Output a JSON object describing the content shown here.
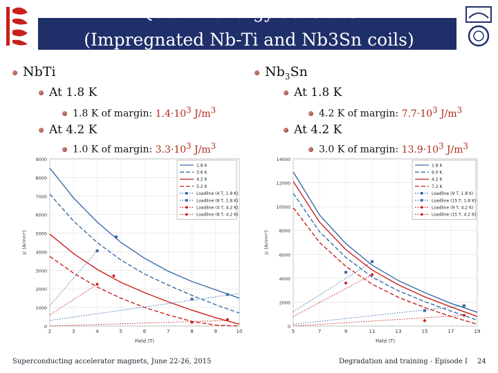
{
  "title": {
    "line1": "Quench energy densities",
    "line2": "(Impregnated Nb-Ti and Nb3Sn coils)"
  },
  "left": {
    "heading": "NbTi",
    "items": [
      {
        "label": "At 1.8 K",
        "sub": {
          "prefix": "1.8 K of margin: ",
          "value": "1.4·10",
          "exp": "3",
          "unit": " J/m",
          "unit_exp": "3"
        }
      },
      {
        "label": "At 4.2 K",
        "sub": {
          "prefix": "1.0 K of margin: ",
          "value": "3.3·10",
          "exp": "3",
          "unit": " J/m",
          "unit_exp": "3"
        }
      }
    ]
  },
  "right": {
    "heading_main": "Nb",
    "heading_sub": "3",
    "heading_tail": "Sn",
    "items": [
      {
        "label": "At 1.8 K",
        "sub": {
          "prefix": "4.2 K of margin: ",
          "value": "7.7·10",
          "exp": "3",
          "unit": " J/m",
          "unit_exp": "3"
        }
      },
      {
        "label": "At 4.2 K",
        "sub": {
          "prefix": "3.0 K of margin: ",
          "value": "13.9·10",
          "exp": "3",
          "unit": " J/m",
          "unit_exp": "3"
        }
      }
    ]
  },
  "footer": {
    "left": "Superconducting accelerator magnets, June 22-26, 2015",
    "right": "Degradation and training - Episode I",
    "page": "24"
  },
  "colors": {
    "title_band": "#1f2f6a",
    "blue": "#3a6aa8",
    "red": "#c8201c",
    "accent": "#b0281a"
  },
  "chart_data": [
    {
      "type": "line",
      "xlabel": "Field (T)",
      "ylabel": "Jc [A/mm²]",
      "xlim": [
        2,
        10
      ],
      "ylim": [
        0,
        9000
      ],
      "xticks": [
        2,
        3,
        4,
        5,
        6,
        7,
        8,
        9,
        10
      ],
      "yticks": [
        0,
        1000,
        2000,
        3000,
        4000,
        5000,
        6000,
        7000,
        8000,
        9000
      ],
      "legend_position": "top-right",
      "series": [
        {
          "name": "1.8 K",
          "color": "#3a6aa8",
          "dash": "solid",
          "x": [
            2,
            3,
            4,
            5,
            6,
            7,
            8,
            9,
            10
          ],
          "y": [
            8500,
            6900,
            5600,
            4500,
            3650,
            2950,
            2400,
            1950,
            1500
          ]
        },
        {
          "name": "3.6 K",
          "color": "#3a6aa8",
          "dash": "dashed",
          "x": [
            2,
            3,
            4,
            5,
            6,
            7,
            8,
            9,
            10
          ],
          "y": [
            7100,
            5650,
            4500,
            3550,
            2800,
            2200,
            1650,
            1150,
            700
          ]
        },
        {
          "name": "4.2 K",
          "color": "#c8201c",
          "dash": "solid",
          "x": [
            2,
            3,
            4,
            5,
            6,
            7,
            8,
            9,
            10
          ],
          "y": [
            4950,
            3900,
            3050,
            2350,
            1800,
            1300,
            850,
            450,
            100
          ]
        },
        {
          "name": "5.2 K",
          "color": "#c8201c",
          "dash": "dashed",
          "x": [
            2,
            3,
            4,
            5,
            6,
            7,
            8,
            9,
            10
          ],
          "y": [
            3750,
            2850,
            2100,
            1500,
            1000,
            600,
            250,
            50,
            0
          ]
        },
        {
          "name": "Loadline (4 T, 1.8 K)",
          "color": "#3a6aa8",
          "dash": "dotted",
          "marker": true,
          "x": [
            2,
            4
          ],
          "y": [
            1100,
            4050
          ]
        },
        {
          "name": "Loadline (8 T, 1.8 K)",
          "color": "#3a6aa8",
          "dash": "dotted",
          "marker": true,
          "x": [
            2,
            10
          ],
          "y": [
            300,
            1750
          ]
        },
        {
          "name": "Loadline (4 T, 4.2 K)",
          "color": "#c8201c",
          "dash": "dotted",
          "marker": true,
          "x": [
            2,
            4
          ],
          "y": [
            600,
            2250
          ]
        },
        {
          "name": "Loadline (8 T, 4.2 K)",
          "color": "#c8201c",
          "dash": "dotted",
          "marker": true,
          "x": [
            2,
            9.5
          ],
          "y": [
            0,
            300
          ]
        }
      ],
      "points": [
        {
          "x": 4,
          "y": 4050,
          "color": "#3a6aa8"
        },
        {
          "x": 4.8,
          "y": 4800,
          "color": "#3a6aa8"
        },
        {
          "x": 4,
          "y": 2250,
          "color": "#c8201c"
        },
        {
          "x": 4.7,
          "y": 2700,
          "color": "#c8201c"
        },
        {
          "x": 8,
          "y": 1450,
          "color": "#3a6aa8"
        },
        {
          "x": 9.5,
          "y": 1700,
          "color": "#3a6aa8"
        },
        {
          "x": 8,
          "y": 200,
          "color": "#c8201c"
        },
        {
          "x": 9.5,
          "y": 350,
          "color": "#c8201c"
        }
      ]
    },
    {
      "type": "line",
      "xlabel": "Field (T)",
      "ylabel": "Jc [A/mm²]",
      "xlim": [
        5,
        19
      ],
      "ylim": [
        0,
        14000
      ],
      "xticks": [
        5,
        7,
        9,
        11,
        13,
        15,
        17,
        19
      ],
      "yticks": [
        0,
        2000,
        4000,
        6000,
        8000,
        10000,
        12000,
        14000
      ],
      "legend_position": "top-right",
      "series": [
        {
          "name": "1.8 K",
          "color": "#3a6aa8",
          "dash": "solid",
          "x": [
            5,
            7,
            9,
            11,
            13,
            15,
            17,
            19
          ],
          "y": [
            12900,
            9300,
            6900,
            5100,
            3800,
            2800,
            1900,
            1150
          ]
        },
        {
          "name": "6.0 K",
          "color": "#3a6aa8",
          "dash": "dashed",
          "x": [
            5,
            7,
            9,
            11,
            13,
            15,
            17,
            19
          ],
          "y": [
            11100,
            7900,
            5750,
            4100,
            2950,
            2050,
            1250,
            500
          ]
        },
        {
          "name": "4.2 K",
          "color": "#c8201c",
          "dash": "solid",
          "x": [
            5,
            7,
            9,
            11,
            13,
            15,
            17,
            19
          ],
          "y": [
            12100,
            8700,
            6400,
            4700,
            3450,
            2450,
            1600,
            800
          ]
        },
        {
          "name": "7.2 K",
          "color": "#c8201c",
          "dash": "dashed",
          "x": [
            5,
            7,
            9,
            11,
            13,
            15,
            17,
            19
          ],
          "y": [
            9900,
            7000,
            5000,
            3500,
            2400,
            1550,
            800,
            150
          ]
        },
        {
          "name": "Loadline (9 T, 1.8 K)",
          "color": "#3a6aa8",
          "dash": "dotted",
          "marker": true,
          "x": [
            5,
            11
          ],
          "y": [
            1200,
            5400
          ]
        },
        {
          "name": "Loadline (15 T, 1.8 K)",
          "color": "#3a6aa8",
          "dash": "dotted",
          "marker": true,
          "x": [
            5,
            18
          ],
          "y": [
            150,
            1700
          ]
        },
        {
          "name": "Loadline (9 T, 4.2 K)",
          "color": "#c8201c",
          "dash": "dotted",
          "marker": true,
          "x": [
            5,
            11
          ],
          "y": [
            800,
            4300
          ]
        },
        {
          "name": "Loadline (15 T, 4.2 K)",
          "color": "#c8201c",
          "dash": "dotted",
          "marker": true,
          "x": [
            5,
            18
          ],
          "y": [
            0,
            900
          ]
        }
      ],
      "points": [
        {
          "x": 9,
          "y": 4500,
          "color": "#3a6aa8"
        },
        {
          "x": 11,
          "y": 5400,
          "color": "#3a6aa8"
        },
        {
          "x": 9,
          "y": 3600,
          "color": "#c8201c"
        },
        {
          "x": 11,
          "y": 4300,
          "color": "#c8201c"
        },
        {
          "x": 15,
          "y": 1300,
          "color": "#3a6aa8"
        },
        {
          "x": 18,
          "y": 1700,
          "color": "#3a6aa8"
        },
        {
          "x": 15,
          "y": 450,
          "color": "#c8201c"
        },
        {
          "x": 18,
          "y": 900,
          "color": "#c8201c"
        }
      ]
    }
  ]
}
